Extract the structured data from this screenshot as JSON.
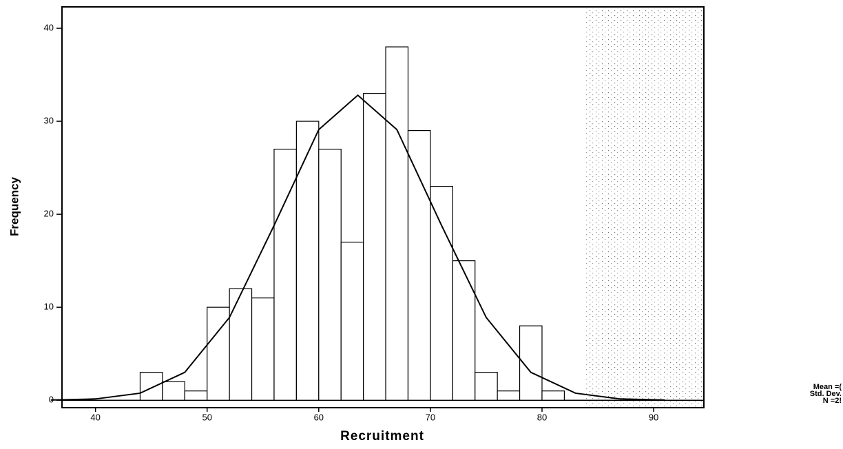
{
  "chart_data": {
    "type": "histogram",
    "xlabel": "Recruitment",
    "ylabel": "Frequency",
    "bins": [
      44,
      46,
      48,
      50,
      52,
      54,
      56,
      58,
      60,
      62,
      64,
      66,
      68,
      70,
      72,
      74,
      76,
      78,
      80,
      82
    ],
    "values": [
      3,
      2,
      1,
      10,
      12,
      11,
      27,
      30,
      27,
      17,
      33,
      38,
      29,
      23,
      15,
      3,
      1,
      8,
      1
    ],
    "color": "#ffffff",
    "curve": {
      "x": [
        36,
        40,
        44,
        48,
        52,
        56,
        60,
        63.5,
        67,
        71,
        75,
        79,
        83,
        87,
        91
      ],
      "y": [
        0.02,
        0.14,
        0.76,
        3.0,
        8.9,
        18.8,
        29.1,
        32.8,
        29.1,
        18.8,
        8.9,
        3.0,
        0.76,
        0.14,
        0.02
      ]
    },
    "xlim": [
      37,
      94.5
    ],
    "ylim": [
      -0.8,
      42.3
    ],
    "xticks": [
      40,
      50,
      60,
      70,
      80,
      90
    ],
    "yticks": [
      0,
      10,
      20,
      30,
      40
    ],
    "legend_text": [
      "Mean =(",
      "Std. Dev.",
      "N =2!"
    ]
  }
}
